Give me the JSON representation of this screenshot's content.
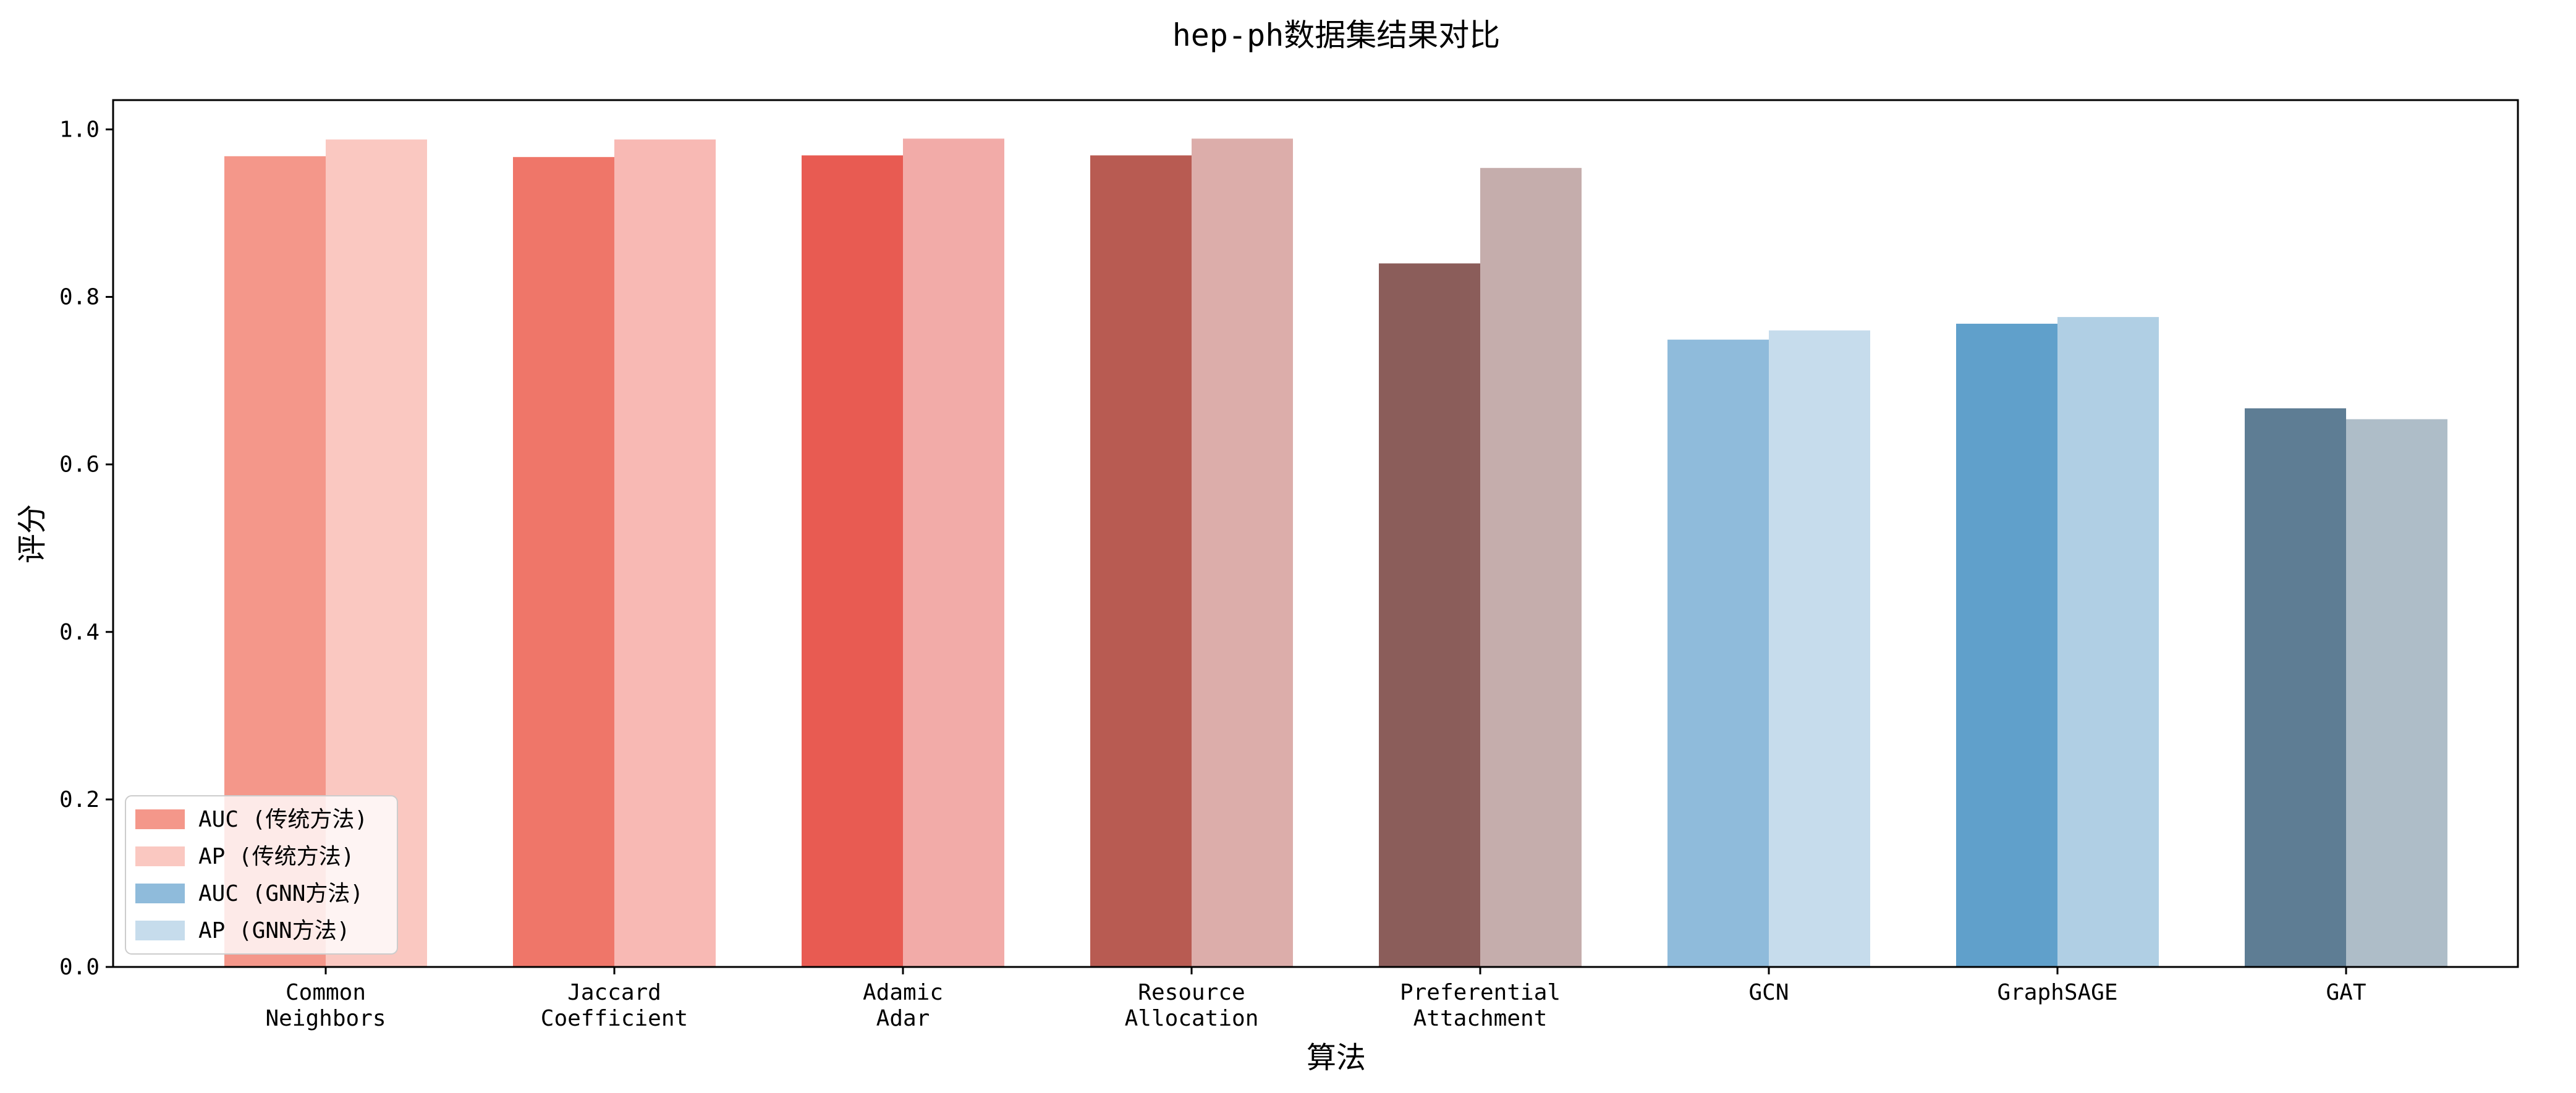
{
  "chart_data": {
    "type": "bar",
    "title": "hep-ph数据集结果对比",
    "xlabel": "算法",
    "ylabel": "评分",
    "ylim": [
      0,
      1.035
    ],
    "yticks": [
      "0.0",
      "0.2",
      "0.4",
      "0.6",
      "0.8",
      "1.0"
    ],
    "categories": [
      [
        "Common",
        "Neighbors"
      ],
      [
        "Jaccard",
        "Coefficient"
      ],
      [
        "Adamic",
        "Adar"
      ],
      [
        "Resource",
        "Allocation"
      ],
      [
        "Preferential",
        "Attachment"
      ],
      [
        "GCN"
      ],
      [
        "GraphSAGE"
      ],
      [
        "GAT"
      ]
    ],
    "series": [
      {
        "name": "AUC",
        "values": [
          0.968,
          0.967,
          0.969,
          0.969,
          0.84,
          0.749,
          0.768,
          0.667
        ],
        "colors": [
          "#f4978a",
          "#ef7669",
          "#e85b52",
          "#b85b52",
          "#8b5d5a",
          "#8fbbdb",
          "#60a0cb",
          "#5e7d94"
        ]
      },
      {
        "name": "AP",
        "values": [
          0.988,
          0.988,
          0.989,
          0.989,
          0.954,
          0.76,
          0.776,
          0.654
        ],
        "colors": [
          "#fac8c1",
          "#f8b9b4",
          "#f2aba8",
          "#dcadaa",
          "#c5adac",
          "#c6dcec",
          "#b0cfe4",
          "#aebdc8"
        ]
      }
    ],
    "legend": {
      "placement": "lower-left",
      "entries": [
        {
          "label": "AUC (传统方法)",
          "color": "#f4978a"
        },
        {
          "label": "AP (传统方法)",
          "color": "#fac8c1"
        },
        {
          "label": "AUC (GNN方法)",
          "color": "#8fbbdb"
        },
        {
          "label": "AP (GNN方法)",
          "color": "#c6dcec"
        }
      ]
    },
    "grid": false
  }
}
